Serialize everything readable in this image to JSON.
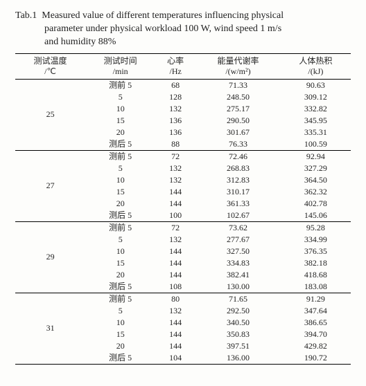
{
  "caption": {
    "label": "Tab.1",
    "line1": "Measured value of different temperatures influencing physical",
    "line2": "parameter under physical workload 100 W, wind speed 1 m/s",
    "line3": "and humidity 88%"
  },
  "columns": [
    {
      "h1": "测试温度",
      "h2": "/℃"
    },
    {
      "h1": "测试时间",
      "h2": "/min"
    },
    {
      "h1": "心率",
      "h2": "/Hz"
    },
    {
      "h1": "能量代谢率",
      "h2": "/(w/m²)"
    },
    {
      "h1": "人体热积",
      "h2": "/(kJ)"
    }
  ],
  "groups": [
    {
      "temp": "25",
      "rows": [
        {
          "time": "测前 5",
          "hr": "68",
          "met": "71.33",
          "heat": "90.63"
        },
        {
          "time": "5",
          "hr": "128",
          "met": "248.50",
          "heat": "309.12"
        },
        {
          "time": "10",
          "hr": "132",
          "met": "275.17",
          "heat": "332.82"
        },
        {
          "time": "15",
          "hr": "136",
          "met": "290.50",
          "heat": "345.95"
        },
        {
          "time": "20",
          "hr": "136",
          "met": "301.67",
          "heat": "335.31"
        },
        {
          "time": "测后 5",
          "hr": "88",
          "met": "76.33",
          "heat": "100.59"
        }
      ]
    },
    {
      "temp": "27",
      "rows": [
        {
          "time": "测前 5",
          "hr": "72",
          "met": "72.46",
          "heat": "92.94"
        },
        {
          "time": "5",
          "hr": "132",
          "met": "268.83",
          "heat": "327.29"
        },
        {
          "time": "10",
          "hr": "132",
          "met": "312.83",
          "heat": "364.50"
        },
        {
          "time": "15",
          "hr": "144",
          "met": "310.17",
          "heat": "362.32"
        },
        {
          "time": "20",
          "hr": "144",
          "met": "361.33",
          "heat": "402.78"
        },
        {
          "time": "测后 5",
          "hr": "100",
          "met": "102.67",
          "heat": "145.06"
        }
      ]
    },
    {
      "temp": "29",
      "rows": [
        {
          "time": "测前 5",
          "hr": "72",
          "met": "73.62",
          "heat": "95.28"
        },
        {
          "time": "5",
          "hr": "132",
          "met": "277.67",
          "heat": "334.99"
        },
        {
          "time": "10",
          "hr": "144",
          "met": "327.50",
          "heat": "376.35"
        },
        {
          "time": "15",
          "hr": "144",
          "met": "334.83",
          "heat": "382.18"
        },
        {
          "time": "20",
          "hr": "144",
          "met": "382.41",
          "heat": "418.68"
        },
        {
          "time": "测后 5",
          "hr": "108",
          "met": "130.00",
          "heat": "183.08"
        }
      ]
    },
    {
      "temp": "31",
      "rows": [
        {
          "time": "测前 5",
          "hr": "80",
          "met": "71.65",
          "heat": "91.29"
        },
        {
          "time": "5",
          "hr": "132",
          "met": "292.50",
          "heat": "347.64"
        },
        {
          "time": "10",
          "hr": "144",
          "met": "340.50",
          "heat": "386.65"
        },
        {
          "time": "15",
          "hr": "144",
          "met": "350.83",
          "heat": "394.70"
        },
        {
          "time": "20",
          "hr": "144",
          "met": "397.51",
          "heat": "429.82"
        },
        {
          "time": "测后 5",
          "hr": "104",
          "met": "136.00",
          "heat": "190.72"
        }
      ]
    }
  ]
}
